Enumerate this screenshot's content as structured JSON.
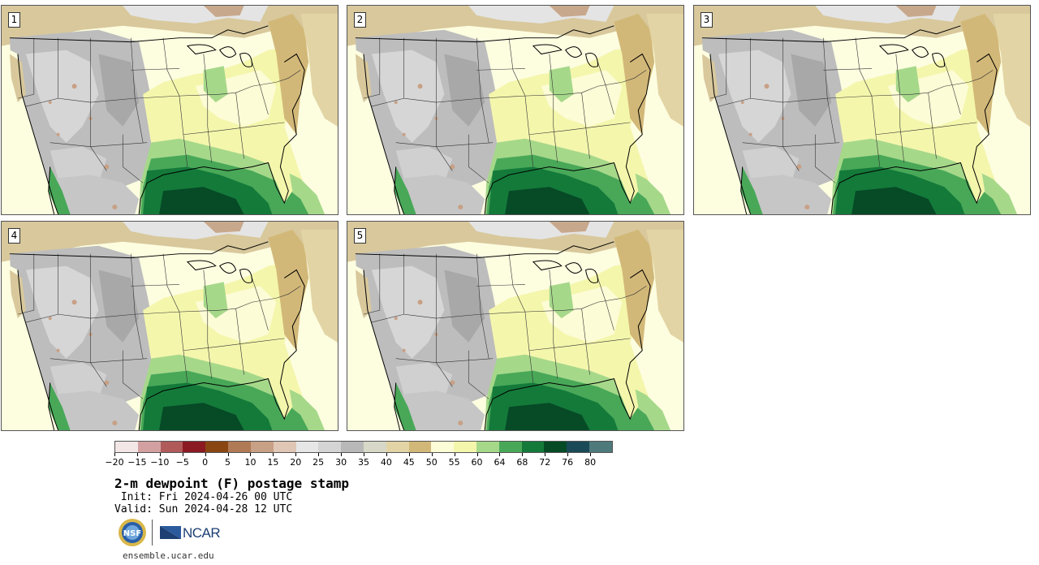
{
  "panels": [
    {
      "label": "1"
    },
    {
      "label": "2"
    },
    {
      "label": "3"
    },
    {
      "label": "4"
    },
    {
      "label": "5"
    }
  ],
  "colorbar": {
    "colors": [
      "#f3e6e6",
      "#d2a0a0",
      "#b05a5a",
      "#8c1a22",
      "#8a4612",
      "#b07a55",
      "#c8a085",
      "#e0c6b4",
      "#e6e6e6",
      "#d4d4d4",
      "#b8b8b8",
      "#d8d8c8",
      "#e2d4a4",
      "#d2b878",
      "#fcfcd6",
      "#f4f6ac",
      "#a6d88a",
      "#48a858",
      "#147a3a",
      "#064a26",
      "#1a4a58",
      "#4e7a7c"
    ],
    "tick_labels": [
      "−20",
      "−15",
      "−10",
      "−5",
      "0",
      "5",
      "10",
      "15",
      "20",
      "25",
      "30",
      "35",
      "40",
      "45",
      "50",
      "55",
      "60",
      "64",
      "68",
      "72",
      "76",
      "80"
    ]
  },
  "title": "2-m dewpoint (F) postage stamp",
  "init": " Init: Fri 2024-04-26 00 UTC",
  "valid": "Valid: Sun 2024-04-28 12 UTC",
  "logos": {
    "nsf_text": "NSF",
    "ncar_text": "NCAR"
  },
  "website": "ensemble.ucar.edu",
  "icons": [
    "nsf-logo-icon",
    "ncar-logo-icon"
  ]
}
